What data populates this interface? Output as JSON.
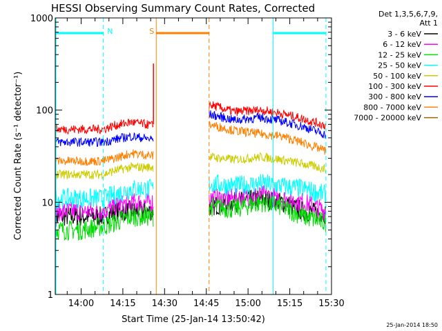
{
  "chart_data": {
    "type": "line",
    "title": "HESSI Observing Summary Count Rates, Corrected",
    "xlabel": "Start Time (25-Jan-14 13:50:42)",
    "ylabel": "Corrected Count Rate (s⁻¹ detector⁻¹)",
    "y_scale": "log",
    "ylim": [
      1,
      1000
    ],
    "xlim": [
      "13:50:42",
      "15:30:00"
    ],
    "x_ticks": [
      "14:00",
      "14:15",
      "14:30",
      "14:45",
      "15:00",
      "15:15",
      "15:30"
    ],
    "y_ticks": [
      "1",
      "10",
      "100",
      "1000"
    ],
    "grid": false,
    "legend_header": [
      "Det 1,3,5,6,7,9,",
      "Att 1"
    ],
    "legend_position": "right",
    "timestamp": "25-Jan-2014 18:50",
    "series": [
      {
        "name": "3 - 6 keV",
        "color": "#000000",
        "x": [
          "13:51",
          "14:00",
          "14:08",
          "14:12",
          "14:18",
          "14:26",
          "14:46",
          "14:55",
          "15:05",
          "15:12",
          "15:20",
          "15:28"
        ],
        "y": [
          7,
          7,
          7,
          8,
          8,
          8,
          9,
          10,
          11,
          10,
          8,
          7.5
        ]
      },
      {
        "name": "6 - 12 keV",
        "color": "#ff00ff",
        "x": [
          "13:51",
          "14:00",
          "14:08",
          "14:12",
          "14:18",
          "14:26",
          "14:46",
          "14:55",
          "15:05",
          "15:12",
          "15:20",
          "15:28"
        ],
        "y": [
          8,
          8,
          8,
          9,
          10,
          10,
          11,
          11,
          12,
          11,
          10,
          8
        ]
      },
      {
        "name": "12 - 25 keV",
        "color": "#00dd00",
        "x": [
          "13:51",
          "14:00",
          "14:08",
          "14:12",
          "14:18",
          "14:26",
          "14:46",
          "14:55",
          "15:05",
          "15:12",
          "15:20",
          "15:28"
        ],
        "y": [
          5,
          5,
          5.5,
          6,
          7,
          7,
          9,
          8.5,
          10,
          9,
          7,
          6
        ]
      },
      {
        "name": "25 - 50 keV",
        "color": "#00ffff",
        "x": [
          "13:51",
          "14:00",
          "14:08",
          "14:12",
          "14:18",
          "14:26",
          "14:46",
          "14:55",
          "15:05",
          "15:12",
          "15:20",
          "15:28"
        ],
        "y": [
          11,
          11,
          11,
          12,
          14,
          14,
          16,
          15,
          16,
          15,
          14,
          12
        ]
      },
      {
        "name": "50 - 100 keV",
        "color": "#cccc00",
        "x": [
          "13:51",
          "14:00",
          "14:08",
          "14:12",
          "14:18",
          "14:26",
          "14:46",
          "14:55",
          "15:05",
          "15:12",
          "15:20",
          "15:28"
        ],
        "y": [
          20,
          20,
          20,
          22,
          24,
          24,
          31,
          29,
          31,
          29,
          26,
          23
        ]
      },
      {
        "name": "100 - 300 keV",
        "color": "#ff0000",
        "x": [
          "13:51",
          "14:00",
          "14:08",
          "14:12",
          "14:18",
          "14:26",
          "14:46",
          "14:55",
          "15:05",
          "15:12",
          "15:20",
          "15:28"
        ],
        "y": [
          62,
          62,
          62,
          68,
          74,
          68,
          115,
          96,
          100,
          92,
          80,
          68
        ]
      },
      {
        "name": "300 - 800 keV",
        "color": "#0000ff",
        "x": [
          "13:51",
          "14:00",
          "14:08",
          "14:12",
          "14:18",
          "14:26",
          "14:46",
          "14:55",
          "15:05",
          "15:12",
          "15:20",
          "15:28"
        ],
        "y": [
          45,
          45,
          45,
          48,
          52,
          48,
          90,
          78,
          83,
          76,
          66,
          54
        ]
      },
      {
        "name": "800 - 7000 keV",
        "color": "#ff8000",
        "x": [
          "13:51",
          "14:00",
          "14:08",
          "14:12",
          "14:18",
          "14:26",
          "14:46",
          "14:55",
          "15:05",
          "15:12",
          "15:20",
          "15:28"
        ],
        "y": [
          28,
          28,
          28,
          30,
          34,
          32,
          70,
          60,
          55,
          52,
          44,
          36
        ]
      },
      {
        "name": "7000 - 20000 keV",
        "color": "#996600",
        "x": [],
        "y": []
      }
    ],
    "spike": {
      "x": "14:26",
      "y": 320,
      "color": "#ff0000"
    },
    "markers": [
      {
        "label": "N",
        "color": "#00ffff",
        "bar_from": "13:51",
        "bar_to": "14:08",
        "lines": [
          "14:08"
        ]
      },
      {
        "label": "S",
        "color": "#ff8000",
        "bar_from": "14:27",
        "bar_to": "14:46",
        "lines": [
          "14:27",
          "14:46"
        ]
      },
      {
        "label": "",
        "color": "#00ffff",
        "bar_from": "15:09",
        "bar_to": "15:28",
        "lines": [
          "15:09",
          "15:28"
        ]
      }
    ]
  }
}
